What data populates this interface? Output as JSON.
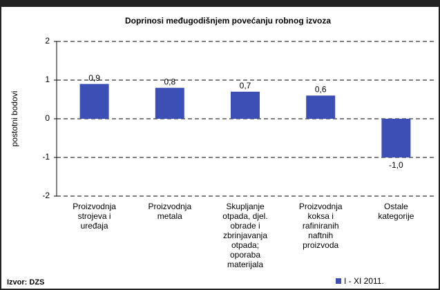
{
  "chart_data": {
    "type": "bar",
    "title": "Doprinosi međugodišnjem povećanju robnog izvoza",
    "y_label": "postotni bodovi",
    "source": "Izvor: DZS",
    "categories": [
      "Proizvodnja\nstrojeva i\nuređaja",
      "Proizvodnja\nmetala",
      "Skupljanje\notpada, djel.\nobrade i\nzbrinjavanja\notpada;\noporaba\nmaterijala",
      "Proizvodnja\nkoksa i\nrafiniranih\nnaftnih\nproizvoda",
      "Ostale\nkategorije"
    ],
    "series": [
      {
        "name": "I - XI 2011.",
        "color": "#3b4fb5",
        "values": [
          0.9,
          0.8,
          0.7,
          0.6,
          -1.0
        ],
        "value_labels": [
          "0,9",
          "0,8",
          "0,7",
          "0,6",
          "-1,0"
        ]
      }
    ],
    "ylim": [
      -2,
      2
    ],
    "yticks": [
      2,
      1,
      0,
      -1,
      -2
    ],
    "grid": true
  }
}
